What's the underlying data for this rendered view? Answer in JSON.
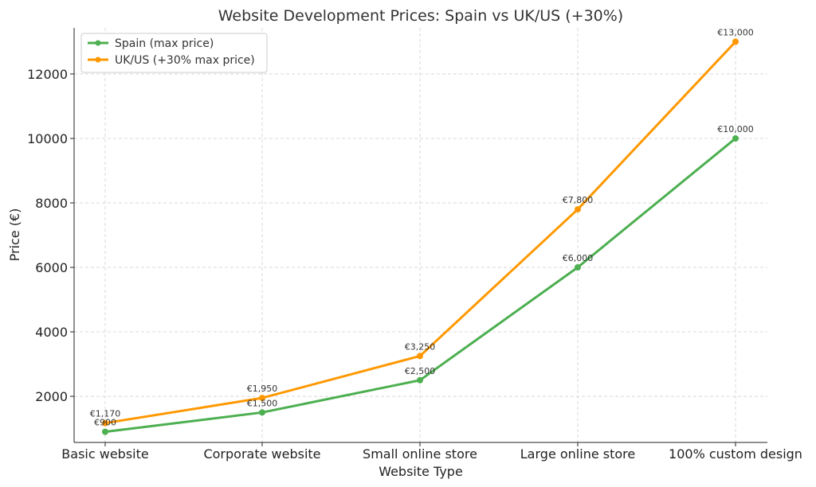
{
  "chart_data": {
    "type": "line",
    "title": "Website Development Prices: Spain vs UK/US (+30%)",
    "xlabel": "Website Type",
    "ylabel": "Price (€)",
    "categories": [
      "Basic website",
      "Corporate website",
      "Small online store",
      "Large online store",
      "100% custom design"
    ],
    "ylim": [
      570,
      13430
    ],
    "yticks": [
      2000,
      4000,
      6000,
      8000,
      10000,
      12000
    ],
    "grid": true,
    "legend_position": "top-left",
    "series": [
      {
        "name": "Spain (max price)",
        "color": "#4caf50",
        "values": [
          900,
          1500,
          2500,
          6000,
          10000
        ],
        "labels": [
          "€900",
          "€1,500",
          "€2,500",
          "€6,000",
          "€10,000"
        ]
      },
      {
        "name": "UK/US (+30% max price)",
        "color": "#ff9800",
        "values": [
          1170,
          1950,
          3250,
          7800,
          13000
        ],
        "labels": [
          "€1,170",
          "€1,950",
          "€3,250",
          "€7,800",
          "€13,000"
        ]
      }
    ]
  }
}
